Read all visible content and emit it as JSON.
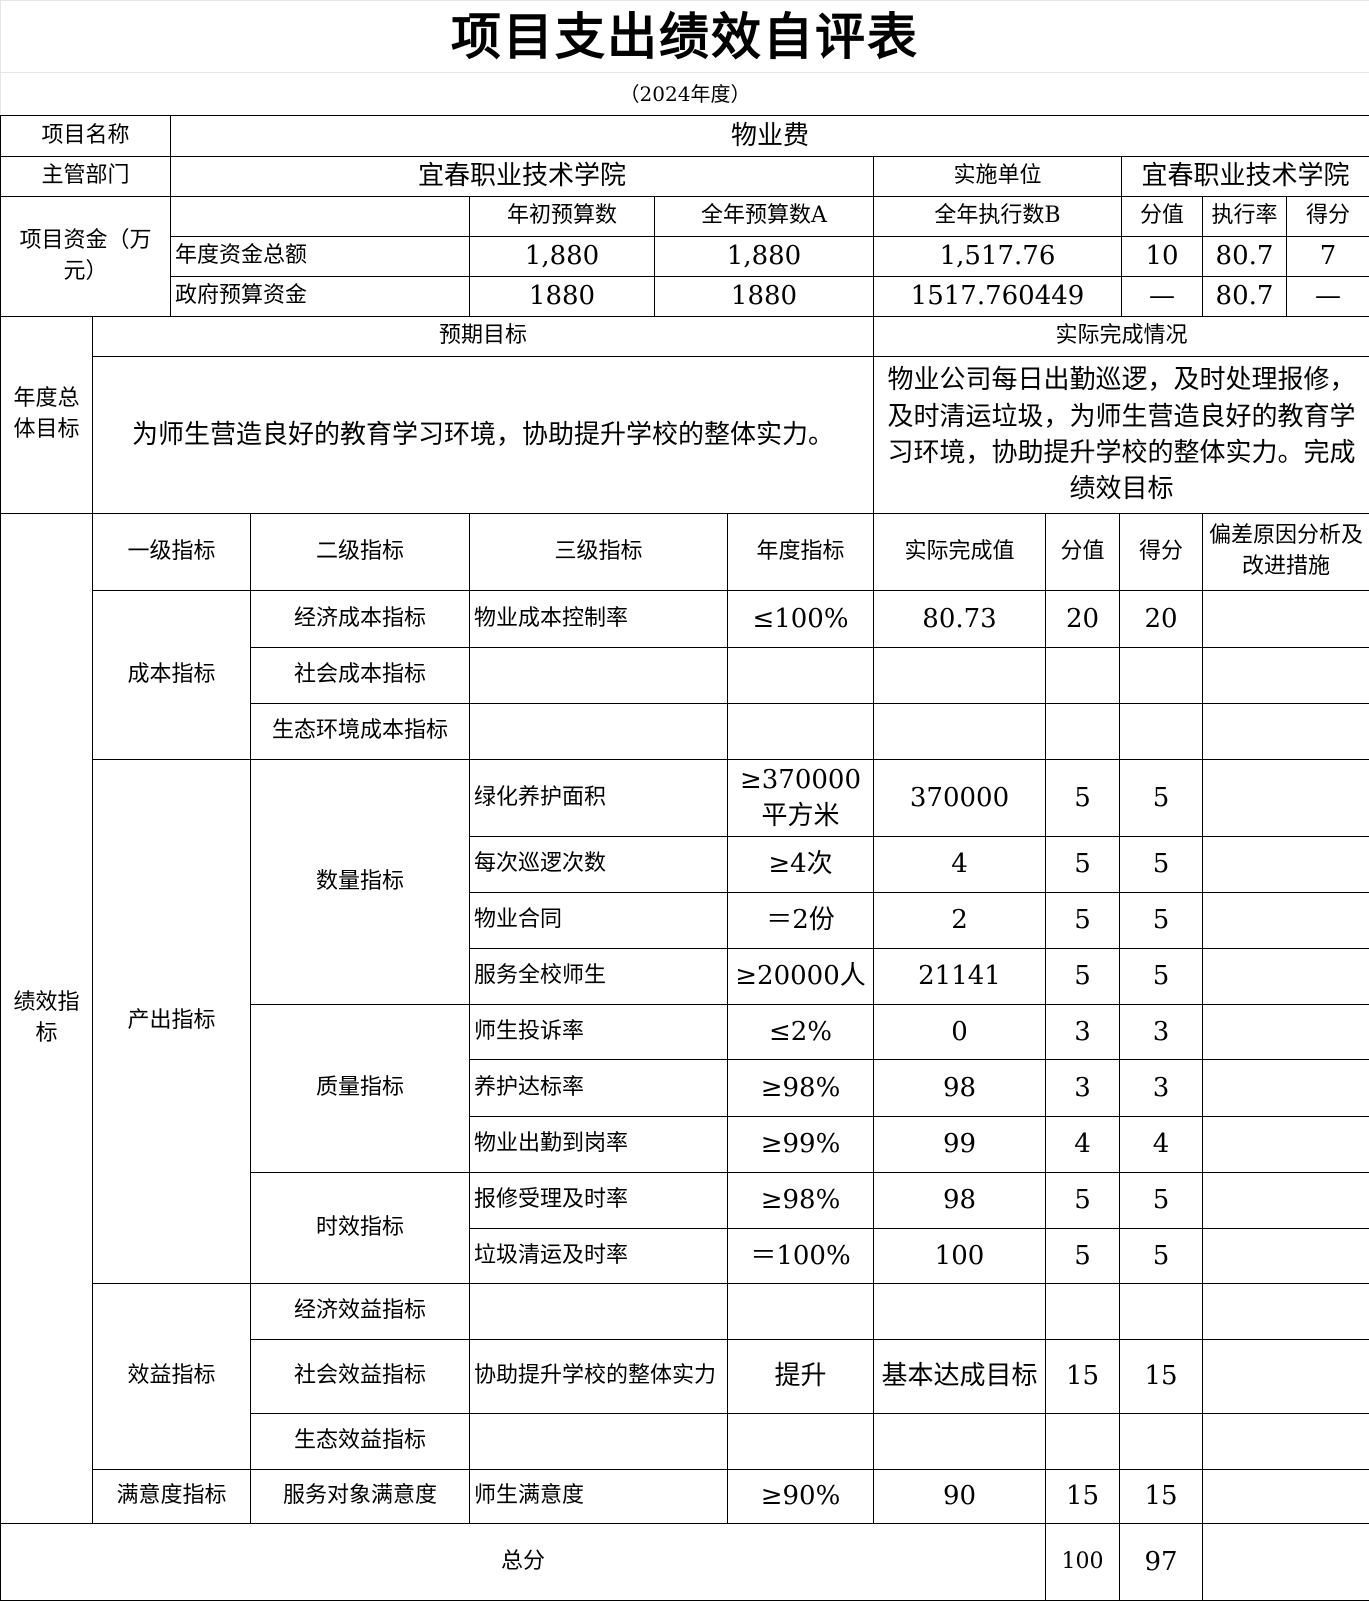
{
  "title": "项目支出绩效自评表",
  "year": "（2024年度）",
  "project": {
    "name_label": "项目名称",
    "name_value": "物业费",
    "dept_label": "主管部门",
    "dept_value": "宜春职业技术学院",
    "impl_label": "实施单位",
    "impl_value": "宜春职业技术学院"
  },
  "funds": {
    "label": "项目资金（万元）",
    "headers": [
      "年初预算数",
      "全年预算数A",
      "全年执行数B",
      "分值",
      "执行率",
      "得分"
    ],
    "rows": [
      {
        "name": "年度资金总额",
        "initial": "1,880",
        "annual": "1,880",
        "executed": "1,517.76",
        "score_value": "10",
        "rate": "80.7",
        "score": "7"
      },
      {
        "name": "政府预算资金",
        "initial": "1880",
        "annual": "1880",
        "executed": "1517.760449",
        "score_value": "—",
        "rate": "80.7",
        "score": "—"
      }
    ]
  },
  "goals": {
    "label": "年度总体目标",
    "expected_header": "预期目标",
    "actual_header": "实际完成情况",
    "expected": "为师生营造良好的教育学习环境，协助提升学校的整体实力。",
    "actual": "物业公司每日出勤巡逻，及时处理报修，及时清运垃圾，为师生营造良好的教育学习环境，协助提升学校的整体实力。完成绩效目标"
  },
  "indicators": {
    "label": "绩效指标",
    "headers": [
      "一级指标",
      "二级指标",
      "三级指标",
      "年度指标",
      "实际完成值",
      "分值",
      "得分",
      "偏差原因分析及改进措施"
    ],
    "level1": [
      "成本指标",
      "产出指标",
      "效益指标",
      "满意度指标"
    ],
    "level2": [
      "经济成本指标",
      "社会成本指标",
      "生态环境成本指标",
      "数量指标",
      "质量指标",
      "时效指标",
      "经济效益指标",
      "社会效益指标",
      "生态效益指标",
      "服务对象满意度"
    ],
    "rows": [
      {
        "name": "物业成本控制率",
        "target": "≤100%",
        "actual": "80.73",
        "value": "20",
        "score": "20",
        "note": ""
      },
      {
        "name": "",
        "target": "",
        "actual": "",
        "value": "",
        "score": "",
        "note": ""
      },
      {
        "name": "",
        "target": "",
        "actual": "",
        "value": "",
        "score": "",
        "note": ""
      },
      {
        "name": "绿化养护面积",
        "target": "≥370000平方米",
        "actual": "370000",
        "value": "5",
        "score": "5",
        "note": ""
      },
      {
        "name": "每次巡逻次数",
        "target": "≥4次",
        "actual": "4",
        "value": "5",
        "score": "5",
        "note": ""
      },
      {
        "name": "物业合同",
        "target": "＝2份",
        "actual": "2",
        "value": "5",
        "score": "5",
        "note": ""
      },
      {
        "name": "服务全校师生",
        "target": "≥20000人",
        "actual": "21141",
        "value": "5",
        "score": "5",
        "note": ""
      },
      {
        "name": "师生投诉率",
        "target": "≤2%",
        "actual": "0",
        "value": "3",
        "score": "3",
        "note": ""
      },
      {
        "name": "养护达标率",
        "target": "≥98%",
        "actual": "98",
        "value": "3",
        "score": "3",
        "note": ""
      },
      {
        "name": "物业出勤到岗率",
        "target": "≥99%",
        "actual": "99",
        "value": "4",
        "score": "4",
        "note": ""
      },
      {
        "name": "报修受理及时率",
        "target": "≥98%",
        "actual": "98",
        "value": "5",
        "score": "5",
        "note": ""
      },
      {
        "name": "垃圾清运及时率",
        "target": "＝100%",
        "actual": "100",
        "value": "5",
        "score": "5",
        "note": ""
      },
      {
        "name": "",
        "target": "",
        "actual": "",
        "value": "",
        "score": "",
        "note": ""
      },
      {
        "name": "协助提升学校的整体实力",
        "target": "提升",
        "actual": "基本达成目标",
        "value": "15",
        "score": "15",
        "note": ""
      },
      {
        "name": "",
        "target": "",
        "actual": "",
        "value": "",
        "score": "",
        "note": ""
      },
      {
        "name": "师生满意度",
        "target": "≥90%",
        "actual": "90",
        "value": "15",
        "score": "15",
        "note": ""
      }
    ]
  },
  "total": {
    "label": "总分",
    "value": "100",
    "score": "97",
    "note": ""
  }
}
